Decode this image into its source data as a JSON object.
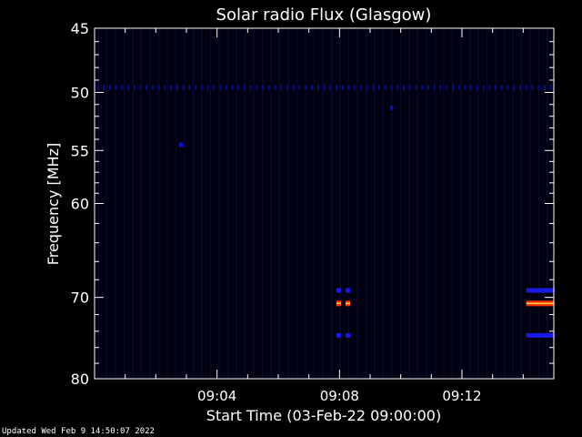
{
  "chart_data": {
    "type": "heatmap",
    "title": "Solar radio Flux (Glasgow)",
    "xlabel": "Start Time (03-Feb-22 09:00:00)",
    "ylabel": "Frequency [MHz]",
    "x_unit": "minutes after 09:00:00",
    "xlim": [
      0,
      15
    ],
    "ylim": [
      80,
      45
    ],
    "y_scale": "log",
    "x_ticks": [
      {
        "value": 4,
        "label": "09:04"
      },
      {
        "value": 8,
        "label": "09:08"
      },
      {
        "value": 12,
        "label": "09:12"
      }
    ],
    "y_ticks": [
      {
        "value": 45,
        "label": "45"
      },
      {
        "value": 50,
        "label": "50"
      },
      {
        "value": 55,
        "label": "55"
      },
      {
        "value": 60,
        "label": "60"
      },
      {
        "value": 70,
        "label": "70"
      },
      {
        "value": 80,
        "label": "80"
      }
    ],
    "background_color": "#000010",
    "features": [
      {
        "kind": "dotted-band",
        "freq": 49.6,
        "t_start": 0,
        "t_end": 15,
        "intensity": "low",
        "color": "#0a0a8c"
      },
      {
        "kind": "spot",
        "freq": 54.5,
        "t_start": 2.75,
        "t_end": 2.9,
        "intensity": "low",
        "color": "#0d0dcc"
      },
      {
        "kind": "spot",
        "freq": 51.3,
        "t_start": 9.65,
        "t_end": 9.75,
        "intensity": "low",
        "color": "#0d0dcc"
      },
      {
        "kind": "spot",
        "freq": 69.2,
        "t_start": 7.9,
        "t_end": 8.05,
        "intensity": "medium",
        "color": "#1a1ae6"
      },
      {
        "kind": "spot",
        "freq": 69.2,
        "t_start": 8.2,
        "t_end": 8.35,
        "intensity": "medium",
        "color": "#1a1ae6"
      },
      {
        "kind": "spot",
        "freq": 70.7,
        "t_start": 7.9,
        "t_end": 8.05,
        "intensity": "high",
        "color": "#ff3000"
      },
      {
        "kind": "spot",
        "freq": 70.7,
        "t_start": 8.2,
        "t_end": 8.35,
        "intensity": "high",
        "color": "#ff3000"
      },
      {
        "kind": "spot",
        "freq": 74.5,
        "t_start": 7.9,
        "t_end": 8.05,
        "intensity": "medium",
        "color": "#1a1ae6"
      },
      {
        "kind": "spot",
        "freq": 74.5,
        "t_start": 8.2,
        "t_end": 8.35,
        "intensity": "medium",
        "color": "#1a1ae6"
      },
      {
        "kind": "band",
        "freq": 69.2,
        "t_start": 14.1,
        "t_end": 15,
        "intensity": "medium",
        "color": "#1a1ae6"
      },
      {
        "kind": "band",
        "freq": 70.7,
        "t_start": 14.1,
        "t_end": 15,
        "intensity": "high",
        "color": "#ff3000"
      },
      {
        "kind": "band",
        "freq": 74.5,
        "t_start": 14.1,
        "t_end": 15,
        "intensity": "medium",
        "color": "#1a1ae6"
      }
    ]
  },
  "footer": {
    "updated": "Updated Wed Feb  9 14:50:07 2022"
  }
}
